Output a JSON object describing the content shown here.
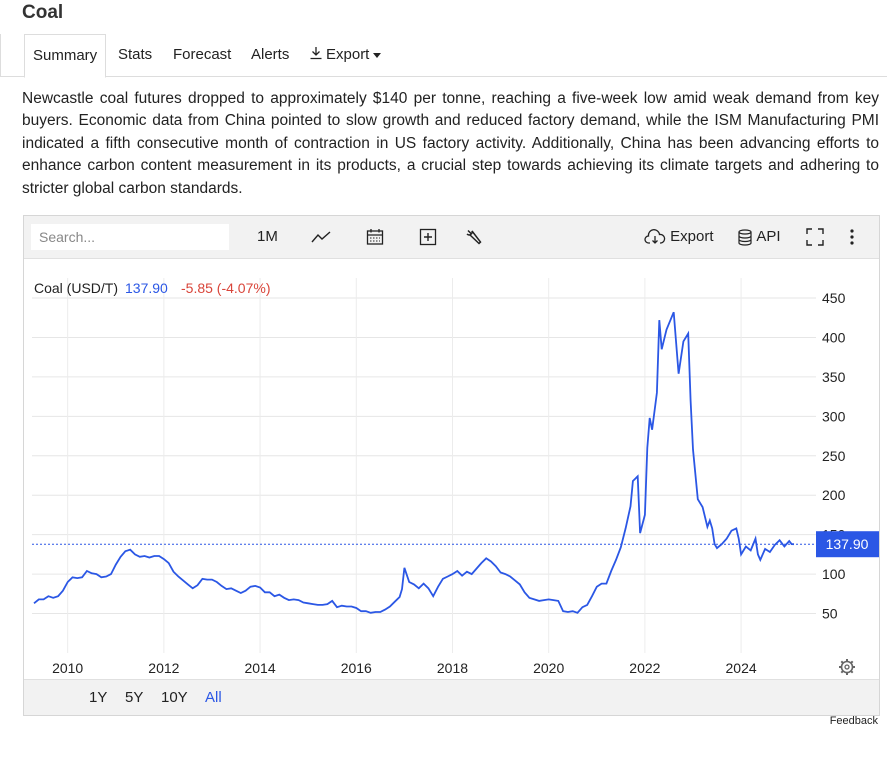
{
  "page": {
    "title": "Coal"
  },
  "tabs": [
    {
      "label": "Summary"
    },
    {
      "label": "Stats"
    },
    {
      "label": "Forecast"
    },
    {
      "label": "Alerts"
    },
    {
      "label": "Export"
    }
  ],
  "summary_text": "Newcastle coal futures dropped to approximately $140 per tonne, reaching a five-week low amid weak demand from key buyers. Economic data from China pointed to slow growth and reduced factory demand, while the ISM Manufacturing PMI indicated a fifth consecutive month of contraction in US factory activity. Additionally, China has been advancing efforts to enhance carbon content measurement in its products, a crucial step towards achieving its climate targets and adhering to stricter global carbon standards.",
  "toolbar": {
    "search_placeholder": "Search...",
    "interval": "1M",
    "export_label": "Export",
    "api_label": "API"
  },
  "legend": {
    "name": "Coal (USD/T)",
    "value": "137.90",
    "change": "-5.85 (-4.07%)"
  },
  "ranges": [
    "1Y",
    "5Y",
    "10Y",
    "All"
  ],
  "selected_range": "All",
  "feedback_label": "Feedback",
  "colors": {
    "line": "#2b57e5",
    "negative": "#d9453a",
    "price_tag": "#2b57e5"
  },
  "chart_data": {
    "type": "line",
    "series": [
      {
        "name": "Coal (USD/T)"
      }
    ],
    "last_value": 137.9,
    "last_label": "137.90",
    "ylim": [
      0,
      450
    ],
    "yticks": [
      50,
      100,
      150,
      200,
      250,
      300,
      350,
      400,
      450
    ],
    "xticks": [
      "2010",
      "2012",
      "2014",
      "2016",
      "2018",
      "2020",
      "2022",
      "2024"
    ],
    "xlim": [
      2009.3,
      2025.1
    ],
    "points": [
      [
        2009.3,
        63
      ],
      [
        2009.4,
        68
      ],
      [
        2009.5,
        68
      ],
      [
        2009.6,
        72
      ],
      [
        2009.7,
        70
      ],
      [
        2009.8,
        72
      ],
      [
        2009.9,
        79
      ],
      [
        2010.0,
        90
      ],
      [
        2010.1,
        96
      ],
      [
        2010.2,
        95
      ],
      [
        2010.3,
        96
      ],
      [
        2010.4,
        104
      ],
      [
        2010.5,
        101
      ],
      [
        2010.6,
        100
      ],
      [
        2010.7,
        96
      ],
      [
        2010.8,
        97
      ],
      [
        2010.9,
        100
      ],
      [
        2011.0,
        112
      ],
      [
        2011.1,
        122
      ],
      [
        2011.2,
        129
      ],
      [
        2011.3,
        131
      ],
      [
        2011.4,
        125
      ],
      [
        2011.5,
        122
      ],
      [
        2011.6,
        123
      ],
      [
        2011.7,
        121
      ],
      [
        2011.8,
        123
      ],
      [
        2011.9,
        123
      ],
      [
        2012.0,
        119
      ],
      [
        2012.1,
        114
      ],
      [
        2012.2,
        103
      ],
      [
        2012.3,
        97
      ],
      [
        2012.4,
        92
      ],
      [
        2012.5,
        87
      ],
      [
        2012.6,
        82
      ],
      [
        2012.7,
        86
      ],
      [
        2012.8,
        94
      ],
      [
        2012.9,
        93
      ],
      [
        2013.0,
        93
      ],
      [
        2013.1,
        90
      ],
      [
        2013.2,
        85
      ],
      [
        2013.3,
        81
      ],
      [
        2013.4,
        82
      ],
      [
        2013.5,
        79
      ],
      [
        2013.6,
        76
      ],
      [
        2013.7,
        79
      ],
      [
        2013.8,
        84
      ],
      [
        2013.9,
        85
      ],
      [
        2014.0,
        83
      ],
      [
        2014.1,
        77
      ],
      [
        2014.2,
        77
      ],
      [
        2014.3,
        72
      ],
      [
        2014.4,
        74
      ],
      [
        2014.5,
        70
      ],
      [
        2014.6,
        67
      ],
      [
        2014.7,
        68
      ],
      [
        2014.8,
        67
      ],
      [
        2014.9,
        64
      ],
      [
        2015.0,
        63
      ],
      [
        2015.1,
        62
      ],
      [
        2015.2,
        61
      ],
      [
        2015.3,
        61
      ],
      [
        2015.4,
        62
      ],
      [
        2015.5,
        66
      ],
      [
        2015.6,
        58
      ],
      [
        2015.7,
        60
      ],
      [
        2015.8,
        59
      ],
      [
        2015.9,
        59
      ],
      [
        2016.0,
        57
      ],
      [
        2016.1,
        53
      ],
      [
        2016.2,
        53
      ],
      [
        2016.3,
        51
      ],
      [
        2016.4,
        52
      ],
      [
        2016.5,
        52
      ],
      [
        2016.6,
        55
      ],
      [
        2016.7,
        59
      ],
      [
        2016.8,
        65
      ],
      [
        2016.9,
        71
      ],
      [
        2016.95,
        81
      ],
      [
        2017.0,
        108
      ],
      [
        2017.1,
        90
      ],
      [
        2017.2,
        87
      ],
      [
        2017.3,
        82
      ],
      [
        2017.4,
        88
      ],
      [
        2017.5,
        82
      ],
      [
        2017.6,
        72
      ],
      [
        2017.7,
        84
      ],
      [
        2017.8,
        94
      ],
      [
        2017.9,
        97
      ],
      [
        2018.0,
        100
      ],
      [
        2018.1,
        104
      ],
      [
        2018.2,
        98
      ],
      [
        2018.3,
        103
      ],
      [
        2018.4,
        100
      ],
      [
        2018.5,
        107
      ],
      [
        2018.6,
        114
      ],
      [
        2018.7,
        120
      ],
      [
        2018.8,
        116
      ],
      [
        2018.9,
        110
      ],
      [
        2019.0,
        102
      ],
      [
        2019.1,
        100
      ],
      [
        2019.2,
        97
      ],
      [
        2019.3,
        92
      ],
      [
        2019.4,
        87
      ],
      [
        2019.5,
        77
      ],
      [
        2019.6,
        70
      ],
      [
        2019.7,
        68
      ],
      [
        2019.8,
        66
      ],
      [
        2019.9,
        67
      ],
      [
        2020.0,
        68
      ],
      [
        2020.1,
        67
      ],
      [
        2020.2,
        66
      ],
      [
        2020.3,
        53
      ],
      [
        2020.4,
        52
      ],
      [
        2020.5,
        53
      ],
      [
        2020.6,
        51
      ],
      [
        2020.7,
        58
      ],
      [
        2020.8,
        61
      ],
      [
        2020.9,
        72
      ],
      [
        2021.0,
        84
      ],
      [
        2021.1,
        88
      ],
      [
        2021.2,
        88
      ],
      [
        2021.3,
        104
      ],
      [
        2021.4,
        118
      ],
      [
        2021.5,
        134
      ],
      [
        2021.6,
        158
      ],
      [
        2021.7,
        186
      ],
      [
        2021.75,
        218
      ],
      [
        2021.85,
        224
      ],
      [
        2021.9,
        152
      ],
      [
        2022.0,
        175
      ],
      [
        2022.05,
        260
      ],
      [
        2022.1,
        298
      ],
      [
        2022.15,
        283
      ],
      [
        2022.25,
        330
      ],
      [
        2022.3,
        422
      ],
      [
        2022.35,
        385
      ],
      [
        2022.45,
        410
      ],
      [
        2022.6,
        432
      ],
      [
        2022.7,
        354
      ],
      [
        2022.8,
        395
      ],
      [
        2022.9,
        405
      ],
      [
        2022.95,
        320
      ],
      [
        2023.0,
        258
      ],
      [
        2023.1,
        195
      ],
      [
        2023.2,
        185
      ],
      [
        2023.3,
        160
      ],
      [
        2023.35,
        168
      ],
      [
        2023.4,
        158
      ],
      [
        2023.45,
        138
      ],
      [
        2023.5,
        133
      ],
      [
        2023.6,
        138
      ],
      [
        2023.7,
        145
      ],
      [
        2023.8,
        155
      ],
      [
        2023.9,
        158
      ],
      [
        2023.95,
        145
      ],
      [
        2024.0,
        125
      ],
      [
        2024.1,
        135
      ],
      [
        2024.2,
        130
      ],
      [
        2024.3,
        145
      ],
      [
        2024.35,
        125
      ],
      [
        2024.4,
        118
      ],
      [
        2024.5,
        132
      ],
      [
        2024.6,
        128
      ],
      [
        2024.7,
        137
      ],
      [
        2024.8,
        143
      ],
      [
        2024.9,
        135
      ],
      [
        2025.0,
        142
      ],
      [
        2025.05,
        138
      ],
      [
        2025.1,
        137.9
      ]
    ]
  }
}
